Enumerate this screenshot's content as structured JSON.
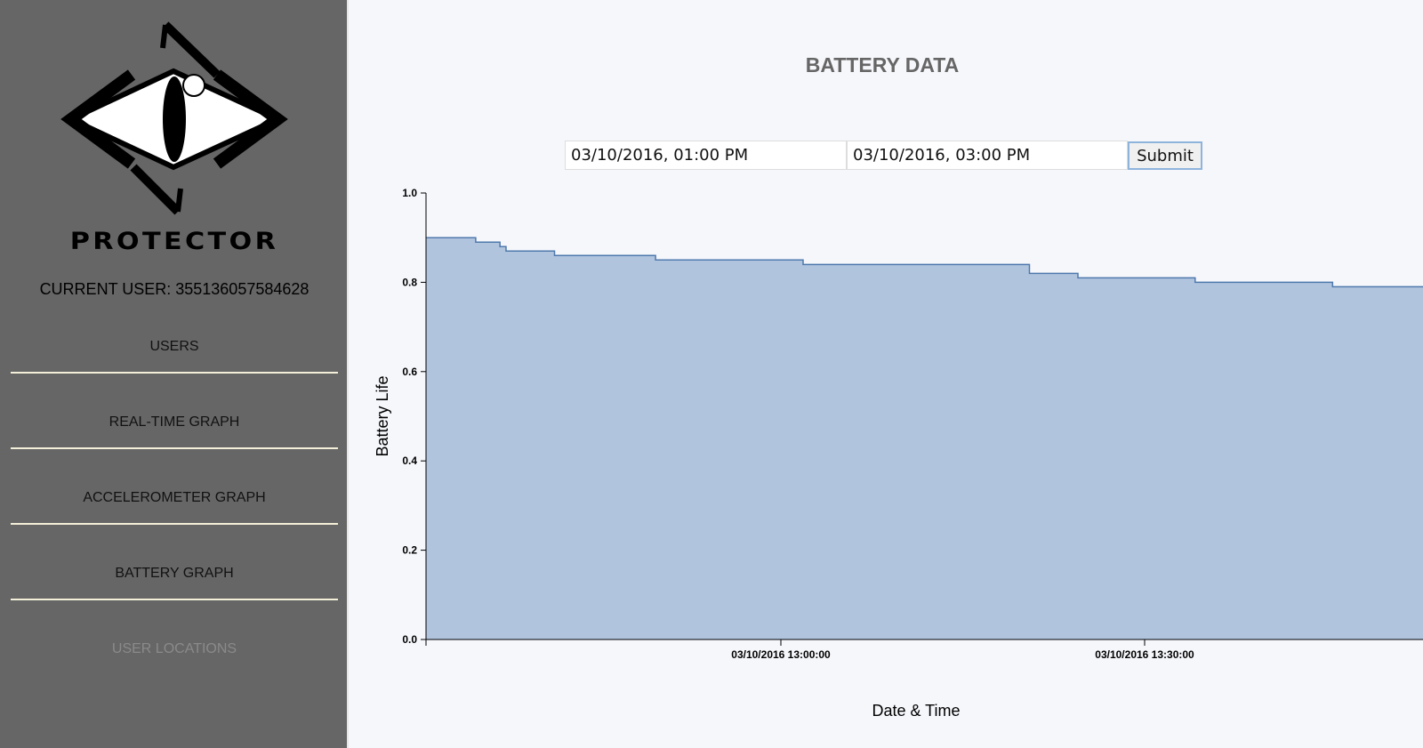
{
  "sidebar": {
    "brand": "PROTECTOR",
    "current_user": "CURRENT USER: 355136057584628",
    "items": [
      {
        "label": "USERS"
      },
      {
        "label": "REAL-TIME GRAPH"
      },
      {
        "label": "ACCELEROMETER GRAPH"
      },
      {
        "label": "BATTERY GRAPH"
      },
      {
        "label": "USER LOCATIONS"
      }
    ]
  },
  "main": {
    "title": "BATTERY DATA",
    "start_value": "03/10/2016, 01:00 PM",
    "end_value": "03/10/2016, 03:00 PM",
    "submit_label": "Submit"
  },
  "chart_data": {
    "type": "area",
    "xlabel": "Date & Time",
    "ylabel": "Battery Life",
    "ylim": [
      0,
      1.0
    ],
    "yticks": [
      "0.0",
      "0.2",
      "0.4",
      "0.6",
      "0.8",
      "1.0"
    ],
    "xticks": [
      "03/10/2016 13:00:00",
      "03/10/2016 13:30:00"
    ],
    "x_unit": "time",
    "series": [
      {
        "curve": "step-after",
        "color": "#b0c4de",
        "stroke": "#4f79ad",
        "points": [
          {
            "x": "03/10/2016 12:30:40",
            "y": 0.9
          },
          {
            "x": "03/10/2016 12:34:50",
            "y": 0.89
          },
          {
            "x": "03/10/2016 12:36:50",
            "y": 0.88
          },
          {
            "x": "03/10/2016 12:37:20",
            "y": 0.87
          },
          {
            "x": "03/10/2016 12:41:20",
            "y": 0.86
          },
          {
            "x": "03/10/2016 12:49:40",
            "y": 0.85
          },
          {
            "x": "03/10/2016 13:01:50",
            "y": 0.84
          },
          {
            "x": "03/10/2016 13:20:30",
            "y": 0.82
          },
          {
            "x": "03/10/2016 13:24:30",
            "y": 0.81
          },
          {
            "x": "03/10/2016 13:34:10",
            "y": 0.8
          },
          {
            "x": "03/10/2016 13:45:30",
            "y": 0.79
          },
          {
            "x": "03/10/2016 13:50:00",
            "y": 0.79
          }
        ]
      }
    ]
  }
}
